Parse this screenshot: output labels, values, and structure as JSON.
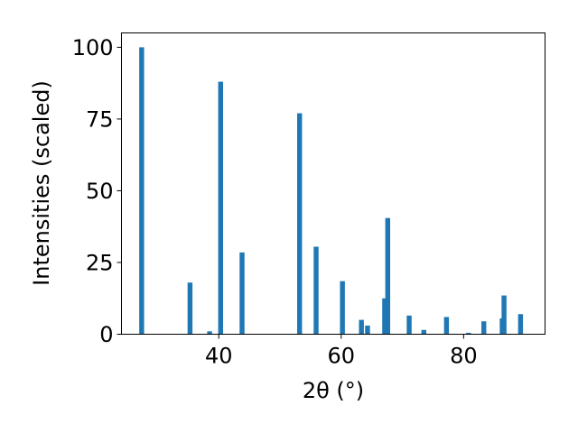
{
  "chart_data": {
    "type": "bar",
    "title": "",
    "xlabel": "2θ (°)",
    "ylabel": "Intensities (scaled)",
    "xlim": [
      24.1,
      93.3
    ],
    "ylim": [
      0,
      105
    ],
    "xticks": [
      40,
      60,
      80
    ],
    "yticks": [
      0,
      25,
      50,
      75,
      100
    ],
    "grid": false,
    "bar_color": "#1f77b4",
    "bar_width": 0.8,
    "x": [
      27.4,
      35.3,
      38.5,
      40.3,
      43.8,
      53.2,
      55.9,
      60.2,
      63.3,
      64.3,
      67.1,
      67.6,
      71.1,
      73.5,
      77.2,
      80.8,
      83.3,
      86.3,
      86.6,
      89.3
    ],
    "values": [
      100,
      18,
      1,
      88,
      28.5,
      77,
      30.5,
      18.5,
      5,
      3,
      12.5,
      40.5,
      6.5,
      1.5,
      6,
      0.5,
      4.5,
      5.5,
      13.5,
      7
    ]
  }
}
